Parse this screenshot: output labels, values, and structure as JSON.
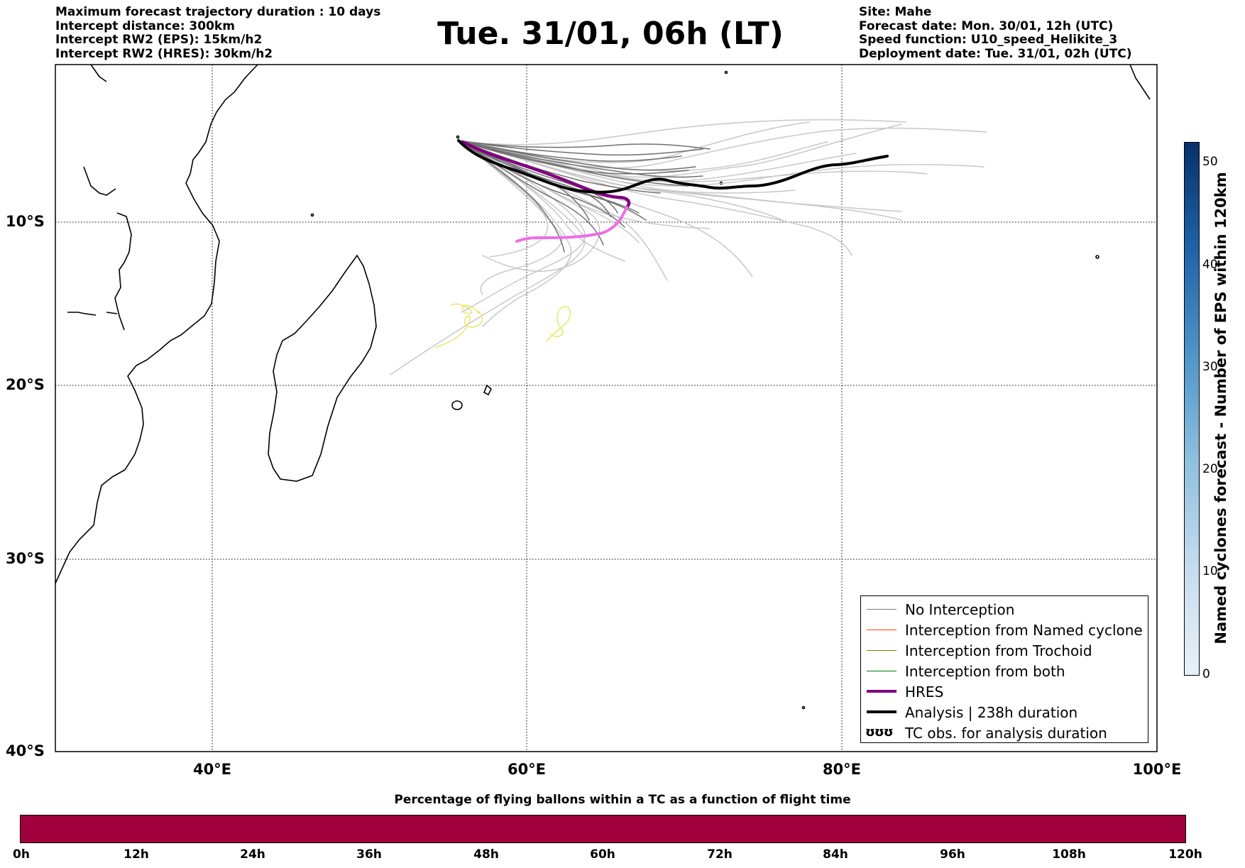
{
  "header": {
    "left_lines": [
      "Maximum forecast trajectory duration : 10 days",
      "Intercept distance: 300km",
      "Intercept RW2 (EPS):  15km/h2",
      "Intercept RW2 (HRES): 30km/h2"
    ],
    "title": "Tue. 31/01, 06h (LT)",
    "right_lines": [
      "Site: Mahe",
      "Forecast date: Mon. 30/01, 12h (UTC)",
      "Speed function: U10_speed_Helikite_3",
      "Deployment date: Tue. 31/01, 02h (UTC)"
    ]
  },
  "map": {
    "lat_labels": [
      "10°S",
      "20°S",
      "30°S",
      "40°S"
    ],
    "lon_labels": [
      "40°E",
      "60°E",
      "80°E",
      "100°E"
    ]
  },
  "legend": {
    "items": [
      {
        "label": "No Interception",
        "color": "#808080"
      },
      {
        "label": "Interception from Named cyclone",
        "color": "#ff4500"
      },
      {
        "label": "Interception from Trochoid",
        "color": "#808000"
      },
      {
        "label": "Interception from both",
        "color": "#008000"
      },
      {
        "label": "HRES",
        "color": "#800080"
      },
      {
        "label": "Analysis | 238h duration",
        "color": "#000000"
      },
      {
        "label": "TC obs. for analysis duration",
        "symbol": "ʊʊʊ"
      }
    ]
  },
  "colorbar_vertical": {
    "label": "Named cyclones forecast - Number of EPS within 120km",
    "ticks": [
      "0",
      "10",
      "20",
      "30",
      "40",
      "50"
    ]
  },
  "colorbar_horizontal": {
    "title": "Percentage of flying ballons within a TC as a function of flight time",
    "ticks": [
      "0h",
      "12h",
      "24h",
      "36h",
      "48h",
      "60h",
      "72h",
      "84h",
      "96h",
      "108h",
      "120h"
    ]
  }
}
